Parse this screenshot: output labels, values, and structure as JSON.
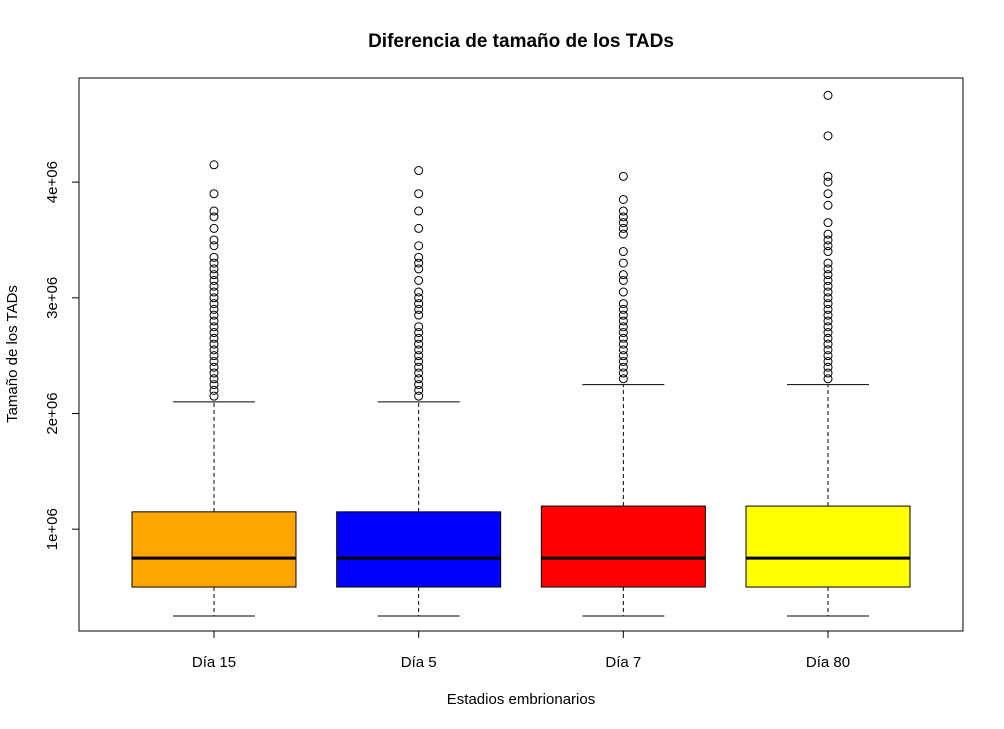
{
  "chart_data": {
    "type": "boxplot",
    "title": "Diferencia de tamaño de los TADs",
    "xlabel": "Estadios embrionarios",
    "ylabel": "Tamaño de los TADs",
    "ylim": [
      120000,
      4900000
    ],
    "y_ticks": [
      1000000,
      2000000,
      3000000,
      4000000
    ],
    "y_tick_labels": [
      "1e+06",
      "2e+06",
      "3e+06",
      "4e+06"
    ],
    "grid": false,
    "legend": "none",
    "categories": [
      "Día 15",
      "Día 5",
      "Día 7",
      "Día 80"
    ],
    "boxes": [
      {
        "label": "Día 15",
        "color": "#FFA500",
        "whisker_low": 250000,
        "q1": 500000,
        "median": 750000,
        "q3": 1150000,
        "whisker_high": 2100000,
        "outliers": [
          2150000,
          2200000,
          2250000,
          2300000,
          2350000,
          2400000,
          2450000,
          2500000,
          2550000,
          2600000,
          2650000,
          2700000,
          2750000,
          2800000,
          2850000,
          2900000,
          2950000,
          3000000,
          3050000,
          3100000,
          3150000,
          3200000,
          3250000,
          3300000,
          3350000,
          3450000,
          3500000,
          3600000,
          3700000,
          3750000,
          3900000,
          4150000
        ]
      },
      {
        "label": "Día 5",
        "color": "#0000FF",
        "whisker_low": 250000,
        "q1": 500000,
        "median": 750000,
        "q3": 1150000,
        "whisker_high": 2100000,
        "outliers": [
          2150000,
          2200000,
          2250000,
          2300000,
          2350000,
          2400000,
          2450000,
          2500000,
          2550000,
          2600000,
          2650000,
          2700000,
          2750000,
          2850000,
          2900000,
          2950000,
          3000000,
          3050000,
          3150000,
          3250000,
          3300000,
          3350000,
          3450000,
          3600000,
          3750000,
          3900000,
          4100000
        ]
      },
      {
        "label": "Día 7",
        "color": "#FF0000",
        "whisker_low": 250000,
        "q1": 500000,
        "median": 750000,
        "q3": 1200000,
        "whisker_high": 2250000,
        "outliers": [
          2300000,
          2350000,
          2400000,
          2450000,
          2500000,
          2550000,
          2600000,
          2650000,
          2700000,
          2750000,
          2800000,
          2850000,
          2900000,
          2950000,
          3050000,
          3150000,
          3200000,
          3300000,
          3400000,
          3550000,
          3600000,
          3650000,
          3700000,
          3750000,
          3850000,
          4050000
        ]
      },
      {
        "label": "Día 80",
        "color": "#FFFF00",
        "whisker_low": 250000,
        "q1": 500000,
        "median": 750000,
        "q3": 1200000,
        "whisker_high": 2250000,
        "outliers": [
          2300000,
          2350000,
          2400000,
          2450000,
          2500000,
          2550000,
          2600000,
          2650000,
          2700000,
          2750000,
          2800000,
          2850000,
          2900000,
          2950000,
          3000000,
          3050000,
          3100000,
          3150000,
          3200000,
          3250000,
          3300000,
          3400000,
          3450000,
          3500000,
          3550000,
          3650000,
          3800000,
          3900000,
          4000000,
          4050000,
          4400000,
          4750000
        ]
      }
    ]
  }
}
